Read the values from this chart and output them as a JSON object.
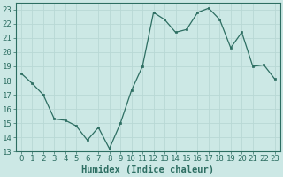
{
  "x": [
    0,
    1,
    2,
    3,
    4,
    5,
    6,
    7,
    8,
    9,
    10,
    11,
    12,
    13,
    14,
    15,
    16,
    17,
    18,
    19,
    20,
    21,
    22,
    23
  ],
  "y": [
    18.5,
    17.8,
    17.0,
    15.3,
    15.2,
    14.8,
    13.8,
    14.7,
    13.2,
    15.0,
    17.3,
    19.0,
    22.8,
    22.3,
    21.4,
    21.6,
    22.8,
    23.1,
    22.3,
    20.3,
    21.4,
    19.0,
    19.1,
    18.1
  ],
  "xlabel": "Humidex (Indice chaleur)",
  "ylim": [
    13,
    23.5
  ],
  "xlim": [
    -0.5,
    23.5
  ],
  "yticks": [
    13,
    14,
    15,
    16,
    17,
    18,
    19,
    20,
    21,
    22,
    23
  ],
  "xticks": [
    0,
    1,
    2,
    3,
    4,
    5,
    6,
    7,
    8,
    9,
    10,
    11,
    12,
    13,
    14,
    15,
    16,
    17,
    18,
    19,
    20,
    21,
    22,
    23
  ],
  "line_color": "#2d6e62",
  "marker_color": "#2d6e62",
  "bg_color": "#cce8e5",
  "grid_color": "#b8d8d5",
  "axis_color": "#2d6e62",
  "tick_label_color": "#2d6e62",
  "xlabel_color": "#2d6e62",
  "font_size_ticks": 6.5,
  "font_size_xlabel": 7.5
}
